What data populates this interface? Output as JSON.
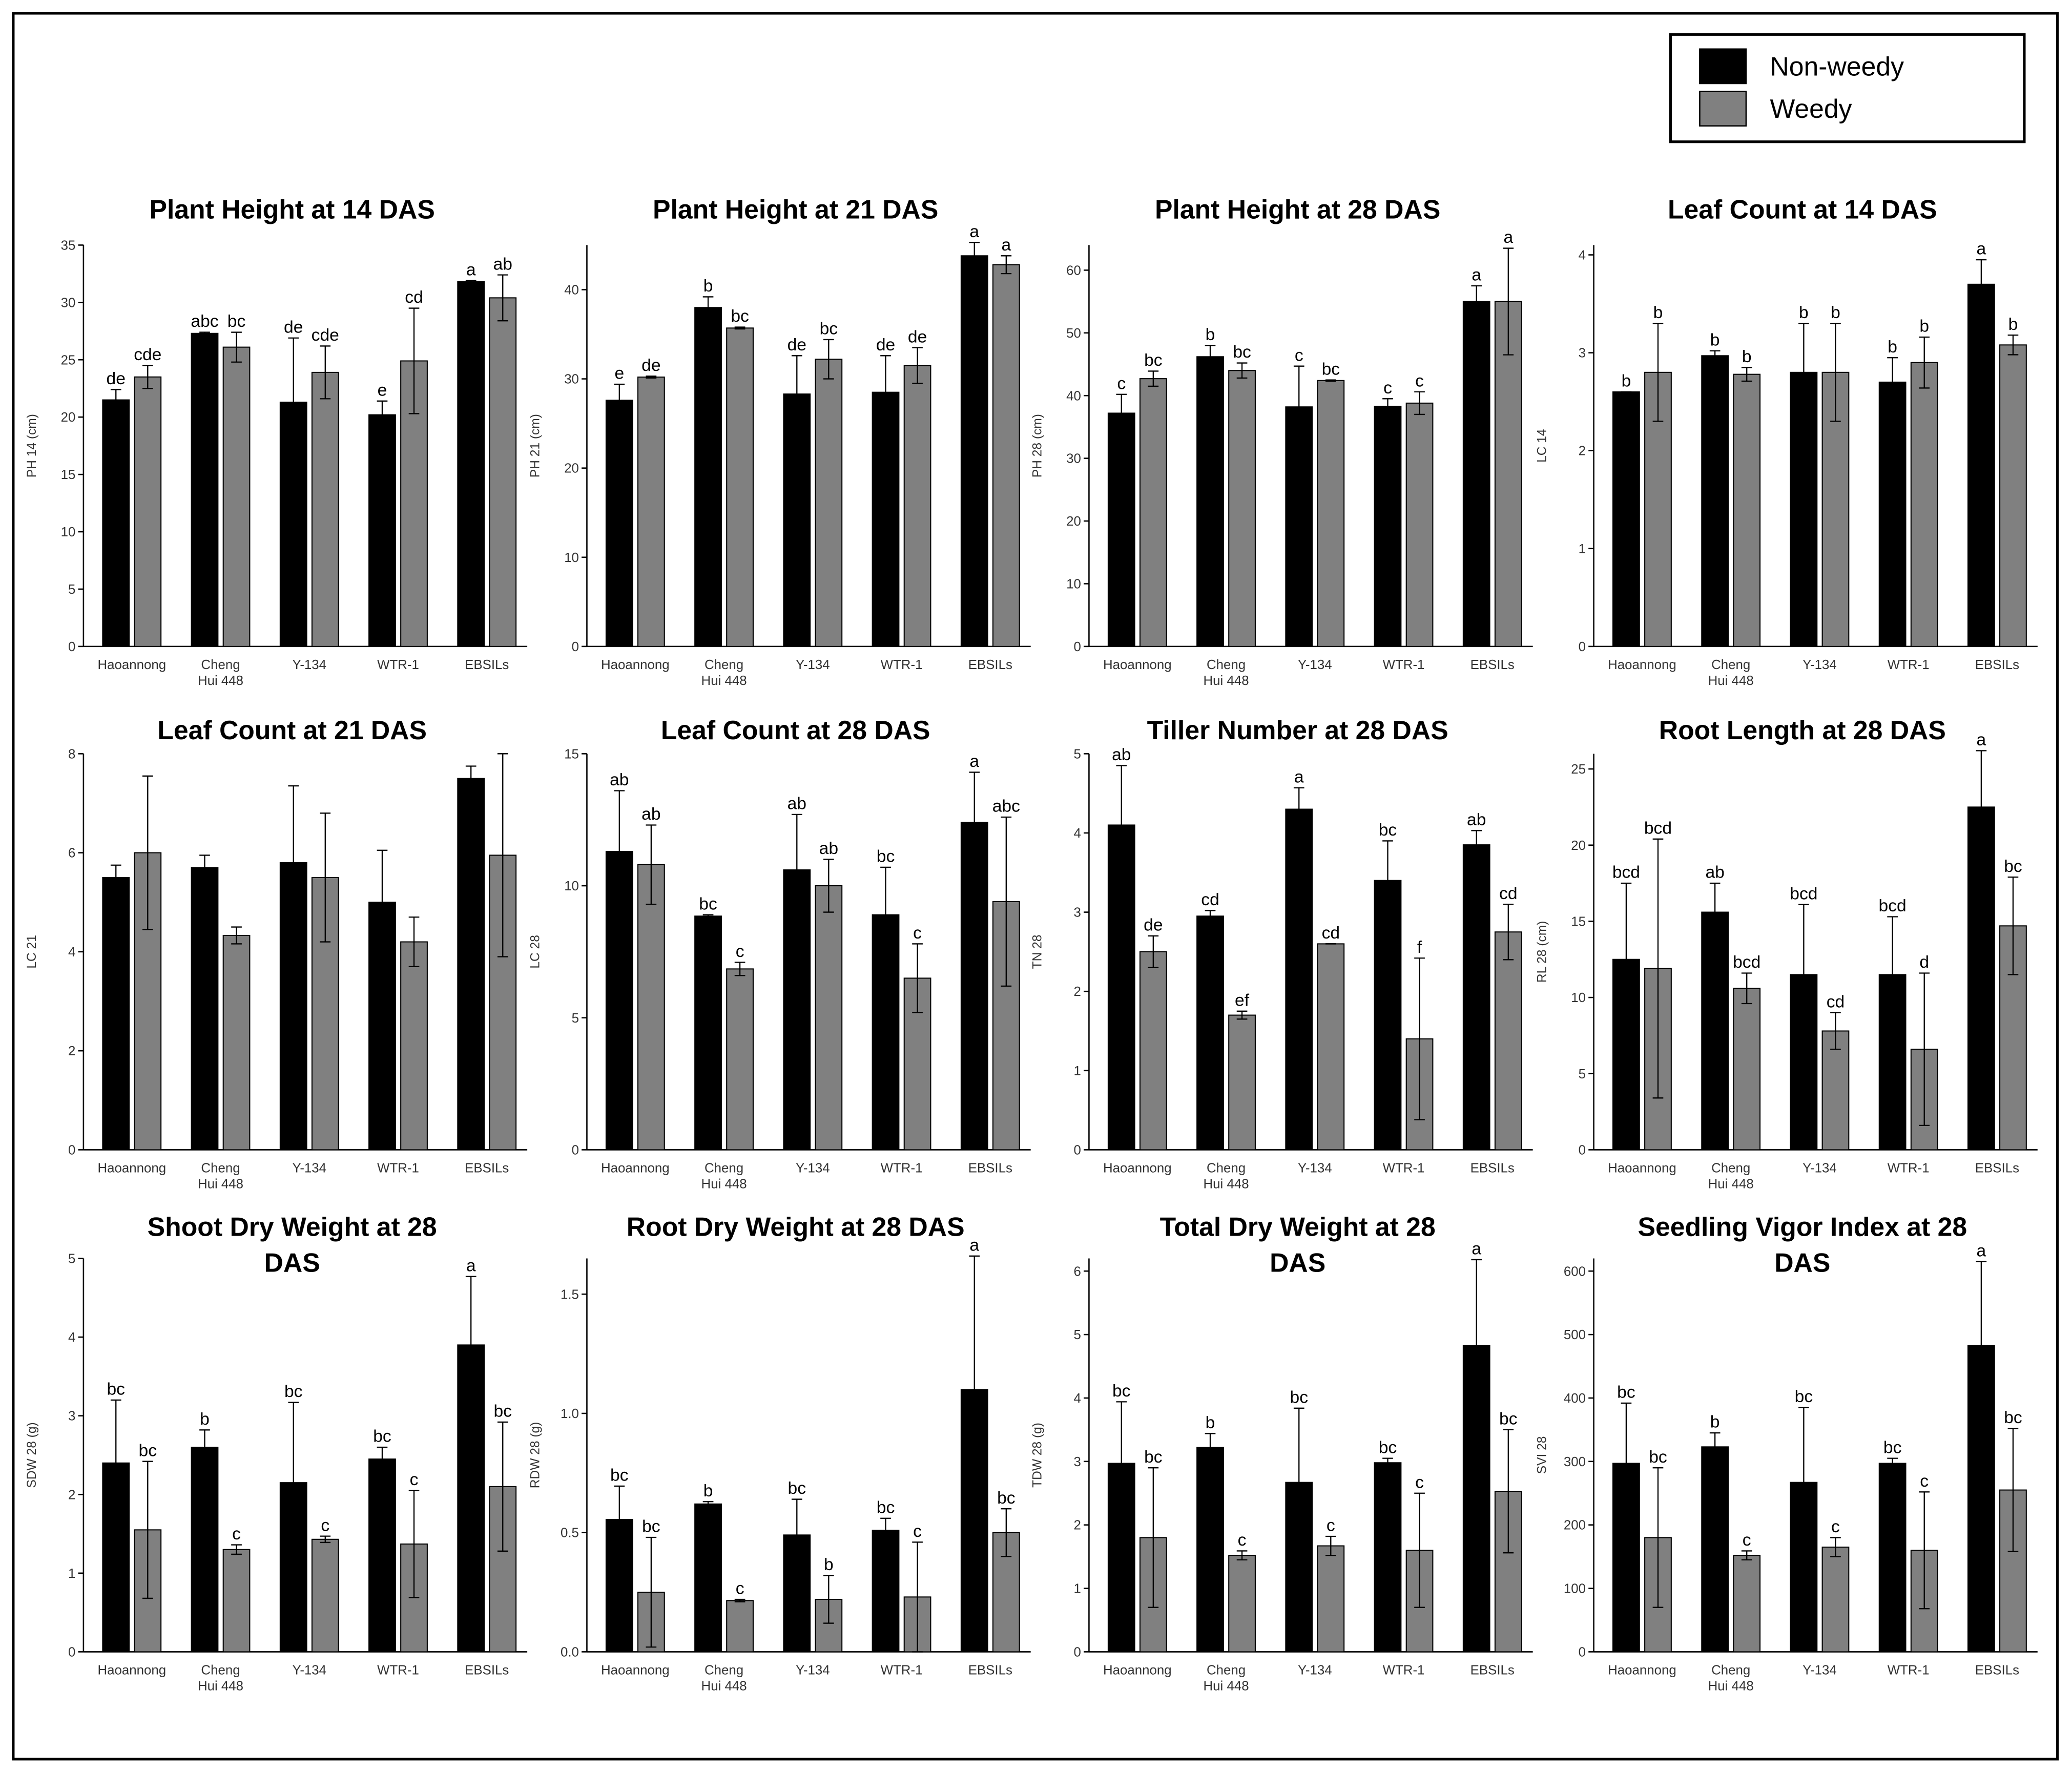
{
  "legend": {
    "position": "top-right",
    "entries": [
      {
        "name": "Non-weedy",
        "color": "#000000"
      },
      {
        "name": "Weedy",
        "color": "#808080"
      }
    ]
  },
  "chart_data": [
    {
      "type": "bar",
      "title": "Plant Height at 14 DAS",
      "ylabel": "PH 14 (cm)",
      "categories": [
        "Haoannong",
        "Cheng Hui 448",
        "Y-134",
        "WTR-1",
        "EBSILs"
      ],
      "ylim": [
        0,
        35
      ],
      "yticks": [
        0,
        5,
        10,
        15,
        20,
        25,
        30,
        35
      ],
      "series": [
        {
          "color": "#000000",
          "values": [
            21.5,
            27.3,
            21.3,
            20.2,
            31.8
          ],
          "errors": [
            0.9,
            0.1,
            5.6,
            1.2,
            0.1
          ],
          "letters": [
            "de",
            "abc",
            "de",
            "e",
            "a"
          ]
        },
        {
          "color": "#808080",
          "values": [
            23.5,
            26.1,
            23.9,
            24.9,
            30.4
          ],
          "errors": [
            1.0,
            1.3,
            2.3,
            4.6,
            2.0
          ],
          "letters": [
            "cde",
            "bc",
            "cde",
            "cd",
            "ab"
          ]
        }
      ]
    },
    {
      "type": "bar",
      "title": "Plant Height at 21 DAS",
      "ylabel": "PH 21 (cm)",
      "categories": [
        "Haoannong",
        "Cheng Hui 448",
        "Y-134",
        "WTR-1",
        "EBSILs"
      ],
      "ylim": [
        0,
        45
      ],
      "yticks": [
        0,
        10,
        20,
        30,
        40
      ],
      "series": [
        {
          "color": "#000000",
          "values": [
            27.6,
            38.0,
            28.3,
            28.5,
            43.8
          ],
          "errors": [
            1.8,
            1.2,
            4.3,
            4.1,
            1.5
          ],
          "letters": [
            "e",
            "b",
            "de",
            "de",
            "a"
          ]
        },
        {
          "color": "#808080",
          "values": [
            30.2,
            35.7,
            32.2,
            31.5,
            42.8
          ],
          "errors": [
            0.1,
            0.1,
            2.2,
            2.0,
            1.0
          ],
          "letters": [
            "de",
            "bc",
            "bc",
            "de",
            "a"
          ]
        }
      ]
    },
    {
      "type": "bar",
      "title": "Plant Height at 28 DAS",
      "ylabel": "PH 28 (cm)",
      "categories": [
        "Haoannong",
        "Cheng Hui 448",
        "Y-134",
        "WTR-1",
        "EBSILs"
      ],
      "ylim": [
        0,
        64
      ],
      "yticks": [
        0,
        10,
        20,
        30,
        40,
        50,
        60
      ],
      "series": [
        {
          "color": "#000000",
          "values": [
            37.2,
            46.2,
            38.2,
            38.3,
            55.0
          ],
          "errors": [
            3.0,
            1.8,
            6.5,
            1.2,
            2.5
          ],
          "letters": [
            "c",
            "b",
            "c",
            "c",
            "a"
          ]
        },
        {
          "color": "#808080",
          "values": [
            42.7,
            44.0,
            42.4,
            38.8,
            55.0
          ],
          "errors": [
            1.2,
            1.2,
            0.1,
            1.8,
            8.5
          ],
          "letters": [
            "bc",
            "bc",
            "bc",
            "c",
            "a"
          ]
        }
      ]
    },
    {
      "type": "bar",
      "title": "Leaf Count at 14 DAS",
      "ylabel": "LC 14",
      "categories": [
        "Haoannong",
        "Cheng Hui 448",
        "Y-134",
        "WTR-1",
        "EBSILs"
      ],
      "ylim": [
        0,
        4.1
      ],
      "yticks": [
        0,
        1,
        2,
        3,
        4
      ],
      "series": [
        {
          "color": "#000000",
          "values": [
            2.6,
            2.97,
            2.8,
            2.7,
            3.7
          ],
          "errors": [
            0,
            0.05,
            0.5,
            0.25,
            0.25
          ],
          "letters": [
            "b",
            "b",
            "b",
            "b",
            "a"
          ]
        },
        {
          "color": "#808080",
          "values": [
            2.8,
            2.78,
            2.8,
            2.9,
            3.08
          ],
          "errors": [
            0.5,
            0.07,
            0.5,
            0.26,
            0.1
          ],
          "letters": [
            "b",
            "b",
            "b",
            "b",
            "b"
          ]
        }
      ]
    },
    {
      "type": "bar",
      "title": "Leaf Count at 21 DAS",
      "ylabel": "LC 21",
      "categories": [
        "Haoannong",
        "Cheng Hui 448",
        "Y-134",
        "WTR-1",
        "EBSILs"
      ],
      "ylim": [
        0,
        8
      ],
      "yticks": [
        0,
        2,
        4,
        6,
        8
      ],
      "series": [
        {
          "color": "#000000",
          "values": [
            5.5,
            5.7,
            5.8,
            5.0,
            7.5
          ],
          "errors": [
            0.25,
            0.25,
            1.55,
            1.05,
            0.25
          ]
        },
        {
          "color": "#808080",
          "values": [
            6.0,
            4.33,
            5.5,
            4.2,
            5.95
          ],
          "errors": [
            1.55,
            0.17,
            1.3,
            0.5,
            2.05
          ]
        }
      ]
    },
    {
      "type": "bar",
      "title": "Leaf Count at 28 DAS",
      "ylabel": "LC 28",
      "categories": [
        "Haoannong",
        "Cheng Hui 448",
        "Y-134",
        "WTR-1",
        "EBSILs"
      ],
      "ylim": [
        0,
        15
      ],
      "yticks": [
        0,
        5,
        10,
        15
      ],
      "series": [
        {
          "color": "#000000",
          "values": [
            11.3,
            8.85,
            10.6,
            8.9,
            12.4
          ],
          "errors": [
            2.3,
            0.05,
            2.1,
            1.8,
            1.9
          ],
          "letters": [
            "ab",
            "bc",
            "ab",
            "bc",
            "a"
          ]
        },
        {
          "color": "#808080",
          "values": [
            10.8,
            6.85,
            10.0,
            6.5,
            9.4
          ],
          "errors": [
            1.5,
            0.25,
            1.0,
            1.3,
            3.2
          ],
          "letters": [
            "ab",
            "c",
            "ab",
            "c",
            "abc"
          ]
        }
      ]
    },
    {
      "type": "bar",
      "title": "Tiller Number at 28 DAS",
      "ylabel": "TN 28",
      "categories": [
        "Haoannong",
        "Cheng Hui 448",
        "Y-134",
        "WTR-1",
        "EBSILs"
      ],
      "ylim": [
        0,
        5
      ],
      "yticks": [
        0,
        1,
        2,
        3,
        4,
        5
      ],
      "series": [
        {
          "color": "#000000",
          "values": [
            4.1,
            2.95,
            4.3,
            3.4,
            3.85
          ],
          "errors": [
            0.75,
            0.07,
            0.27,
            0.5,
            0.18
          ],
          "letters": [
            "ab",
            "cd",
            "a",
            "bc",
            "ab"
          ]
        },
        {
          "color": "#808080",
          "values": [
            2.5,
            1.7,
            2.6,
            1.4,
            2.75
          ],
          "errors": [
            0.2,
            0.05,
            0,
            1.02,
            0.35
          ],
          "letters": [
            "de",
            "ef",
            "cd",
            "f",
            "cd"
          ]
        }
      ]
    },
    {
      "type": "bar",
      "title": "Root Length at 28 DAS",
      "ylabel": "RL 28 (cm)",
      "categories": [
        "Haoannong",
        "Cheng Hui 448",
        "Y-134",
        "WTR-1",
        "EBSILs"
      ],
      "ylim": [
        0,
        26
      ],
      "yticks": [
        0,
        5,
        10,
        15,
        20,
        25
      ],
      "series": [
        {
          "color": "#000000",
          "values": [
            12.5,
            15.6,
            11.5,
            11.5,
            22.5
          ],
          "errors": [
            5.0,
            1.9,
            4.6,
            3.8,
            3.7
          ],
          "letters": [
            "bcd",
            "ab",
            "bcd",
            "bcd",
            "a"
          ]
        },
        {
          "color": "#808080",
          "values": [
            11.9,
            10.6,
            7.8,
            6.6,
            14.7
          ],
          "errors": [
            8.5,
            1.0,
            1.2,
            5.0,
            3.2
          ],
          "letters": [
            "bcd",
            "bcd",
            "cd",
            "d",
            "bc"
          ]
        }
      ]
    },
    {
      "type": "bar",
      "title": "Shoot Dry Weight at 28 DAS",
      "ylabel": "SDW 28 (g)",
      "categories": [
        "Haoannong",
        "Cheng Hui 448",
        "Y-134",
        "WTR-1",
        "EBSILs"
      ],
      "ylim": [
        0,
        5
      ],
      "yticks": [
        0,
        1,
        2,
        3,
        4,
        5
      ],
      "series": [
        {
          "color": "#000000",
          "values": [
            2.4,
            2.6,
            2.15,
            2.45,
            3.9
          ],
          "errors": [
            0.8,
            0.22,
            1.02,
            0.15,
            0.87
          ],
          "letters": [
            "bc",
            "b",
            "bc",
            "bc",
            "a"
          ]
        },
        {
          "color": "#808080",
          "values": [
            1.55,
            1.3,
            1.43,
            1.37,
            2.1
          ],
          "errors": [
            0.87,
            0.06,
            0.04,
            0.68,
            0.82
          ],
          "letters": [
            "bc",
            "c",
            "c",
            "c",
            "bc"
          ]
        }
      ]
    },
    {
      "type": "bar",
      "title": "Root Dry Weight at 28 DAS",
      "ylabel": "RDW 28 (g)",
      "categories": [
        "Haoannong",
        "Cheng Hui 448",
        "Y-134",
        "WTR-1",
        "EBSILs"
      ],
      "ylim": [
        0,
        1.65
      ],
      "yticks": [
        {
          "value": 0,
          "label": "0.0"
        },
        0.5,
        {
          "value": 1,
          "label": "1.0"
        },
        1.5
      ],
      "series": [
        {
          "color": "#000000",
          "values": [
            0.555,
            0.62,
            0.49,
            0.51,
            1.1
          ],
          "errors": [
            0.14,
            0.01,
            0.15,
            0.05,
            0.56
          ],
          "letters": [
            "bc",
            "b",
            "bc",
            "bc",
            "a"
          ]
        },
        {
          "color": "#808080",
          "values": [
            0.25,
            0.215,
            0.22,
            0.23,
            0.5
          ],
          "errors": [
            0.23,
            0.005,
            0.1,
            0.23,
            0.1
          ],
          "letters": [
            "bc",
            "c",
            "b",
            "c",
            "bc"
          ]
        }
      ]
    },
    {
      "type": "bar",
      "title": "Total Dry Weight at 28 DAS",
      "ylabel": "TDW 28 (g)",
      "categories": [
        "Haoannong",
        "Cheng Hui 448",
        "Y-134",
        "WTR-1",
        "EBSILs"
      ],
      "ylim": [
        0,
        6.2
      ],
      "yticks": [
        0,
        1,
        2,
        3,
        4,
        5,
        6
      ],
      "series": [
        {
          "color": "#000000",
          "values": [
            2.97,
            3.22,
            2.67,
            2.98,
            4.83
          ],
          "errors": [
            0.97,
            0.22,
            1.17,
            0.07,
            1.35
          ],
          "letters": [
            "bc",
            "b",
            "bc",
            "bc",
            "a"
          ]
        },
        {
          "color": "#808080",
          "values": [
            1.8,
            1.52,
            1.67,
            1.6,
            2.53
          ],
          "errors": [
            1.1,
            0.07,
            0.15,
            0.9,
            0.97
          ],
          "letters": [
            "bc",
            "c",
            "c",
            "c",
            "bc"
          ]
        }
      ]
    },
    {
      "type": "bar",
      "title": "Seedling Vigor Index at 28 DAS",
      "ylabel": "SVI 28",
      "categories": [
        "Haoannong",
        "Cheng Hui 448",
        "Y-134",
        "WTR-1",
        "EBSILs"
      ],
      "ylim": [
        0,
        620
      ],
      "yticks": [
        0,
        100,
        200,
        300,
        400,
        500,
        600
      ],
      "series": [
        {
          "color": "#000000",
          "values": [
            297,
            323,
            267,
            297,
            483
          ],
          "errors": [
            95,
            22,
            118,
            8,
            132
          ],
          "letters": [
            "bc",
            "b",
            "bc",
            "bc",
            "a"
          ]
        },
        {
          "color": "#808080",
          "values": [
            180,
            152,
            165,
            160,
            255
          ],
          "errors": [
            110,
            7,
            15,
            92,
            97
          ],
          "letters": [
            "bc",
            "c",
            "c",
            "c",
            "bc"
          ]
        }
      ]
    }
  ]
}
